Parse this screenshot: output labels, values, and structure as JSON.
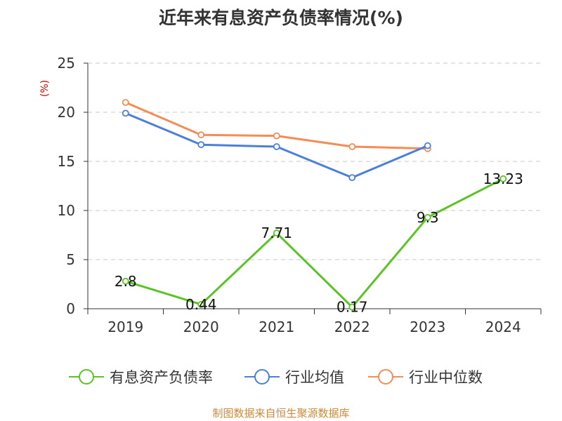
{
  "chart_data": {
    "type": "line",
    "title": "近年来有息资产负债率情况(%)",
    "ylabel": "(%)",
    "categories": [
      "2019",
      "2020",
      "2021",
      "2022",
      "2023",
      "2024"
    ],
    "ylim": [
      0,
      25
    ],
    "yticks": [
      0,
      5,
      10,
      15,
      20,
      25
    ],
    "grid": true,
    "legend_position": "bottom",
    "series": [
      {
        "name": "有息资产负债率",
        "color": "#5bc325",
        "values": [
          2.8,
          0.44,
          7.71,
          0.17,
          9.3,
          13.23
        ],
        "labels": [
          "2.8",
          "0.44",
          "7.71",
          "0.17",
          "9.3",
          "13.23"
        ]
      },
      {
        "name": "行业均值",
        "color": "#4a7fdc",
        "values": [
          19.9,
          16.7,
          16.5,
          13.35,
          16.6,
          null
        ]
      },
      {
        "name": "行业中位数",
        "color": "#f58b55",
        "values": [
          21.0,
          17.7,
          17.6,
          16.5,
          16.3,
          null
        ]
      }
    ],
    "source": "制图数据来自恒生聚源数据库"
  }
}
